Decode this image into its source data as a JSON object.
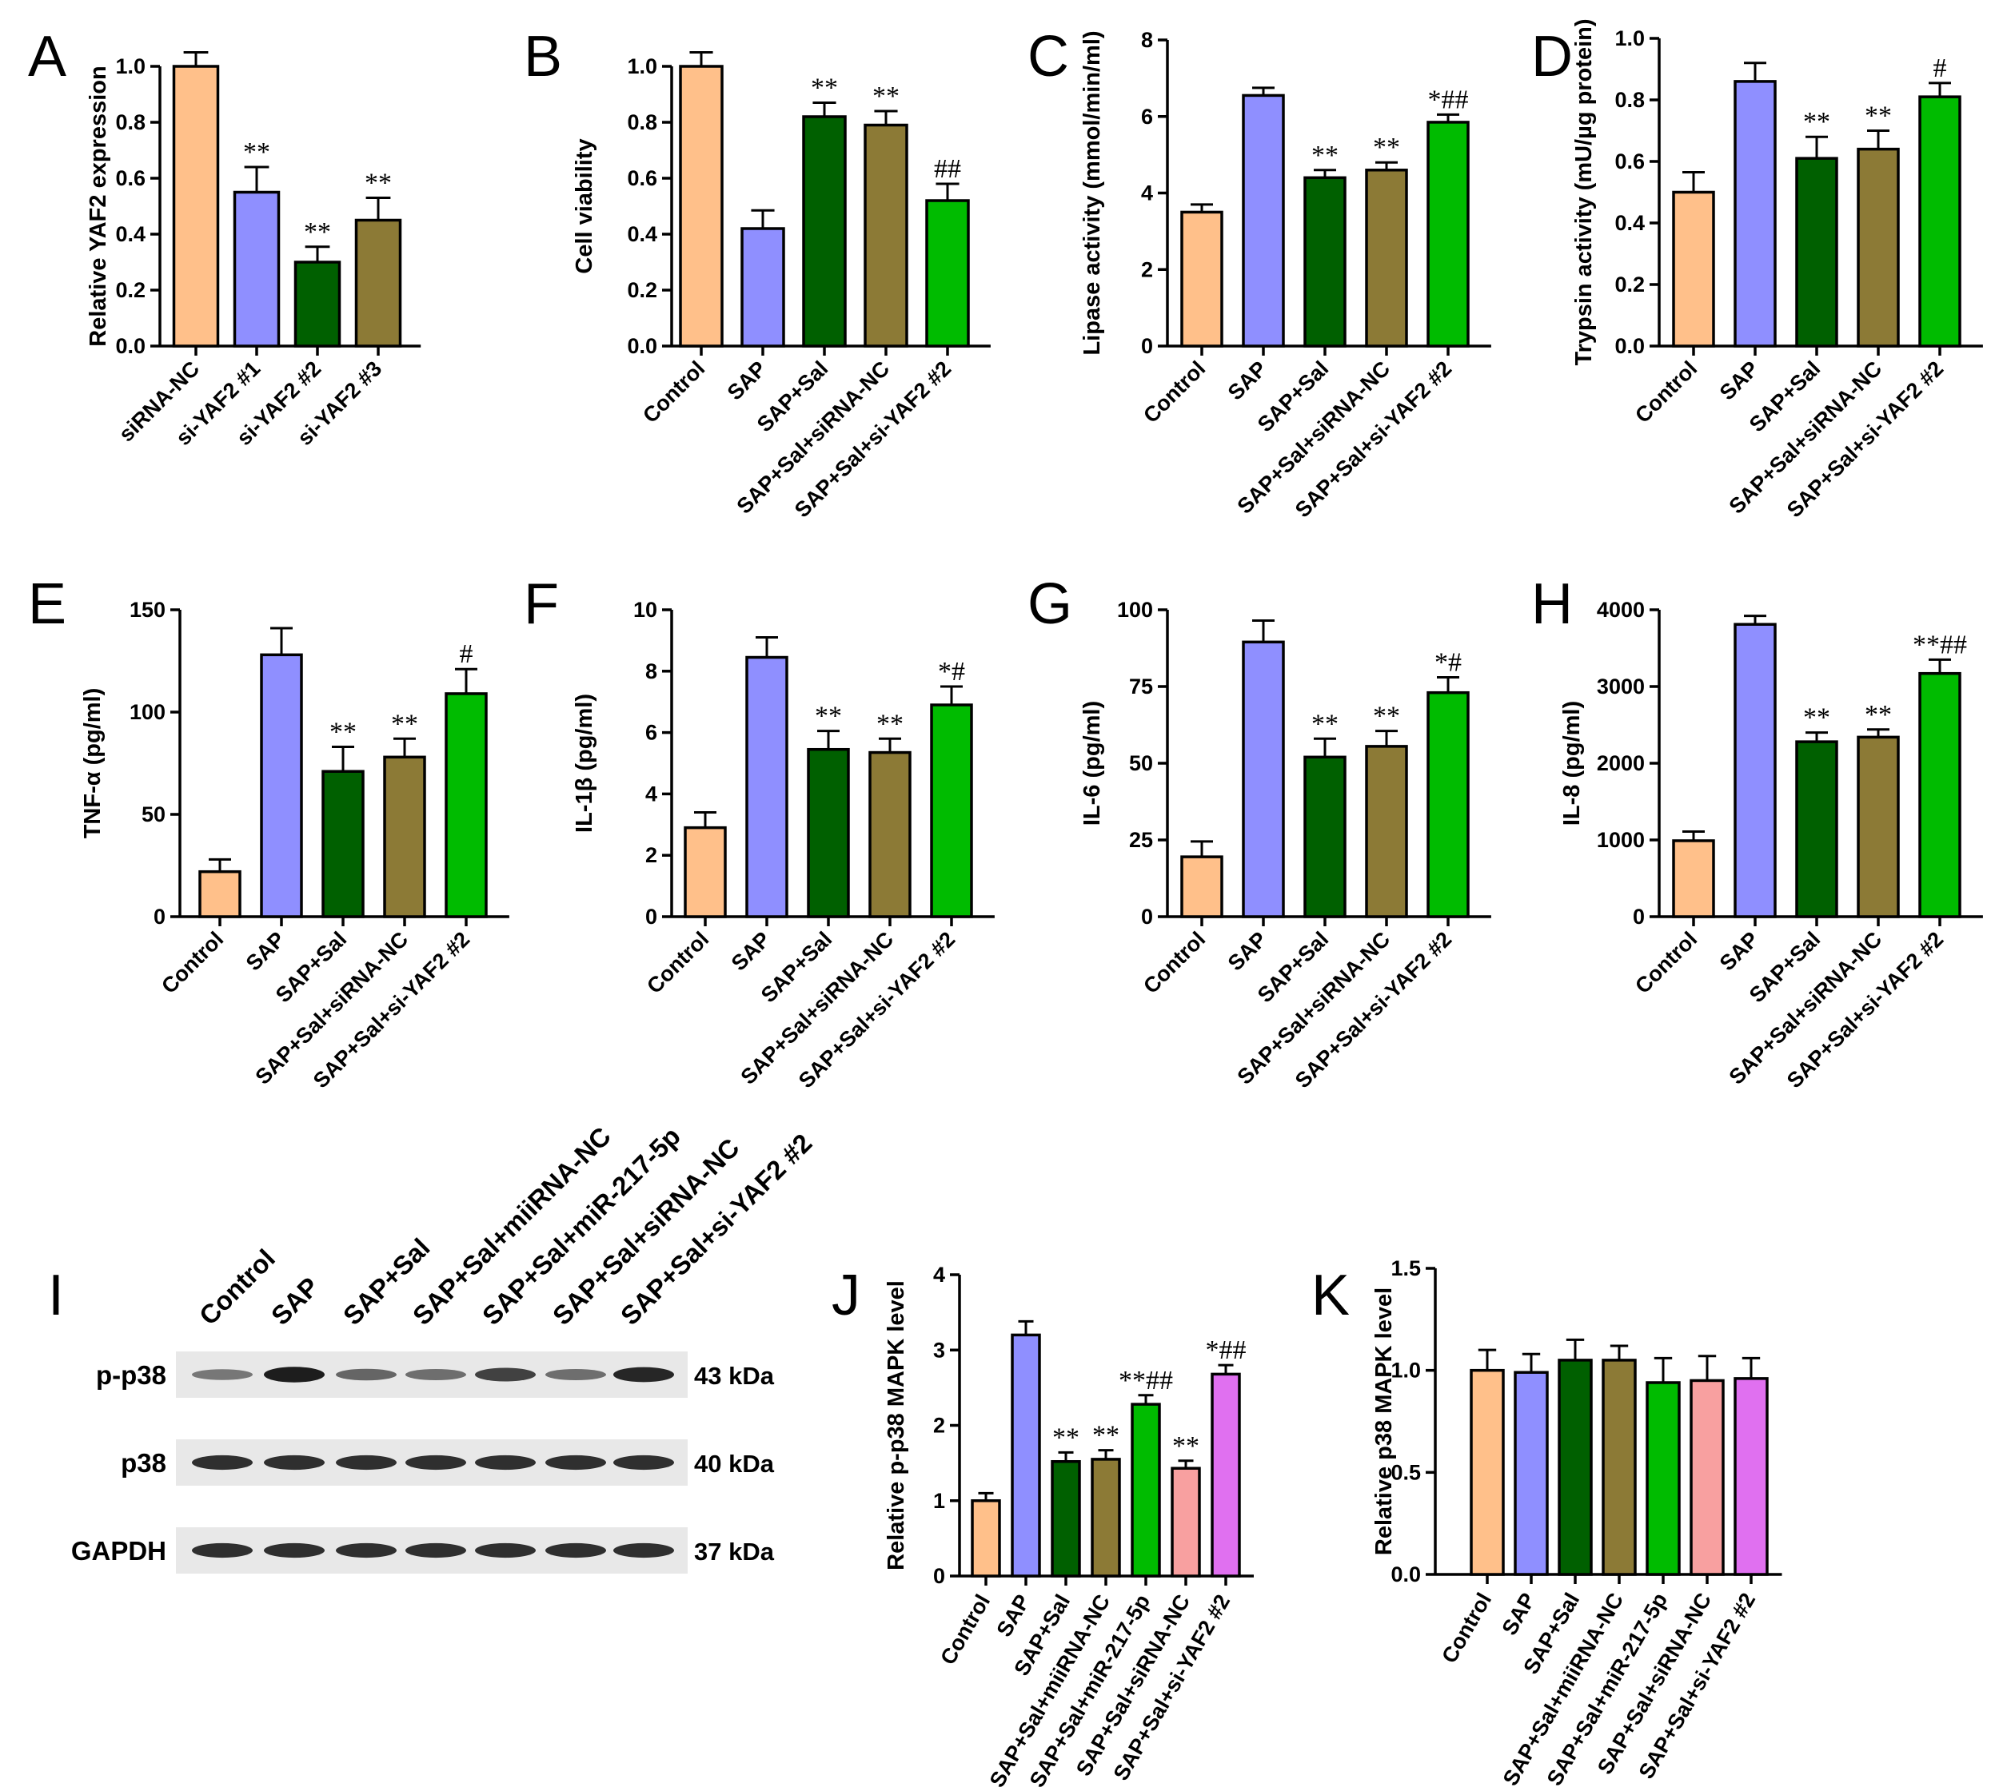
{
  "colors": {
    "orange": "#FFC08A",
    "lavender": "#8F8FFF",
    "darkgreen": "#006000",
    "olive": "#8C7A36",
    "green": "#00BB00",
    "pink": "#F8A0A0",
    "violet": "#E070F0"
  },
  "chart_data": [
    {
      "panel": "A",
      "type": "bar",
      "ylabel": "Relative YAF2 expression",
      "ylim": [
        0,
        1.0
      ],
      "yticks": [
        0.0,
        0.2,
        0.4,
        0.6,
        0.8,
        1.0
      ],
      "categories": [
        "siRNA-NC",
        "si-YAF2 #1",
        "si-YAF2 #2",
        "si-YAF2 #3"
      ],
      "values": [
        1.0,
        0.55,
        0.3,
        0.45
      ],
      "errors": [
        0.05,
        0.09,
        0.055,
        0.08
      ],
      "annotations": [
        "",
        "**",
        "**",
        "**"
      ],
      "colors": [
        "orange",
        "lavender",
        "darkgreen",
        "olive"
      ]
    },
    {
      "panel": "B",
      "type": "bar",
      "ylabel": "Cell viability",
      "ylim": [
        0,
        1.0
      ],
      "yticks": [
        0.0,
        0.2,
        0.4,
        0.6,
        0.8,
        1.0
      ],
      "categories": [
        "Control",
        "SAP",
        "SAP+Sal",
        "SAP+Sal+siRNA-NC",
        "SAP+Sal+si-YAF2 #2"
      ],
      "values": [
        1.0,
        0.42,
        0.82,
        0.79,
        0.52
      ],
      "errors": [
        0.05,
        0.065,
        0.05,
        0.05,
        0.06
      ],
      "annotations": [
        "",
        "",
        "**",
        "**",
        "##"
      ],
      "colors": [
        "orange",
        "lavender",
        "darkgreen",
        "olive",
        "green"
      ]
    },
    {
      "panel": "C",
      "type": "bar",
      "ylabel": "Lipase activity (mmol/min/ml)",
      "ylim": [
        0,
        8
      ],
      "yticks": [
        0,
        2,
        4,
        6,
        8
      ],
      "categories": [
        "Control",
        "SAP",
        "SAP+Sal",
        "SAP+Sal+siRNA-NC",
        "SAP+Sal+si-YAF2 #2"
      ],
      "values": [
        3.5,
        6.55,
        4.4,
        4.6,
        5.85
      ],
      "errors": [
        0.2,
        0.2,
        0.2,
        0.2,
        0.2
      ],
      "annotations": [
        "",
        "",
        "**",
        "**",
        "*##"
      ],
      "colors": [
        "orange",
        "lavender",
        "darkgreen",
        "olive",
        "green"
      ]
    },
    {
      "panel": "D",
      "type": "bar",
      "ylabel": "Trypsin activity (mU/µg protein)",
      "ylim": [
        0,
        1.0
      ],
      "yticks": [
        0.0,
        0.2,
        0.4,
        0.6,
        0.8,
        1.0
      ],
      "categories": [
        "Control",
        "SAP",
        "SAP+Sal",
        "SAP+Sal+siRNA-NC",
        "SAP+Sal+si-YAF2 #2"
      ],
      "values": [
        0.5,
        0.86,
        0.61,
        0.64,
        0.81
      ],
      "errors": [
        0.065,
        0.06,
        0.07,
        0.06,
        0.045
      ],
      "annotations": [
        "",
        "",
        "**",
        "**",
        "#"
      ],
      "colors": [
        "orange",
        "lavender",
        "darkgreen",
        "olive",
        "green"
      ]
    },
    {
      "panel": "E",
      "type": "bar",
      "ylabel": "TNF-α (pg/ml)",
      "ylim": [
        0,
        150
      ],
      "yticks": [
        0,
        50,
        100,
        150
      ],
      "categories": [
        "Control",
        "SAP",
        "SAP+Sal",
        "SAP+Sal+siRNA-NC",
        "SAP+Sal+si-YAF2 #2"
      ],
      "values": [
        22,
        128,
        71,
        78,
        109
      ],
      "errors": [
        6,
        13,
        12,
        9,
        12
      ],
      "annotations": [
        "",
        "",
        "**",
        "**",
        "#"
      ],
      "colors": [
        "orange",
        "lavender",
        "darkgreen",
        "olive",
        "green"
      ]
    },
    {
      "panel": "F",
      "type": "bar",
      "ylabel": "IL-1β (pg/ml)",
      "ylim": [
        0,
        10
      ],
      "yticks": [
        0,
        2,
        4,
        6,
        8,
        10
      ],
      "categories": [
        "Control",
        "SAP",
        "SAP+Sal",
        "SAP+Sal+siRNA-NC",
        "SAP+Sal+si-YAF2 #2"
      ],
      "values": [
        2.9,
        8.45,
        5.45,
        5.35,
        6.9
      ],
      "errors": [
        0.5,
        0.65,
        0.6,
        0.45,
        0.6
      ],
      "annotations": [
        "",
        "",
        "**",
        "**",
        "*#"
      ],
      "colors": [
        "orange",
        "lavender",
        "darkgreen",
        "olive",
        "green"
      ]
    },
    {
      "panel": "G",
      "type": "bar",
      "ylabel": "IL-6 (pg/ml)",
      "ylim": [
        0,
        100
      ],
      "yticks": [
        0,
        25,
        50,
        75,
        100
      ],
      "categories": [
        "Control",
        "SAP",
        "SAP+Sal",
        "SAP+Sal+siRNA-NC",
        "SAP+Sal+si-YAF2 #2"
      ],
      "values": [
        19.5,
        89.5,
        52,
        55.5,
        73
      ],
      "errors": [
        5,
        7,
        6,
        5,
        5
      ],
      "annotations": [
        "",
        "",
        "**",
        "**",
        "*#"
      ],
      "colors": [
        "orange",
        "lavender",
        "darkgreen",
        "olive",
        "green"
      ]
    },
    {
      "panel": "H",
      "type": "bar",
      "ylabel": "IL-8 (pg/ml)",
      "ylim": [
        0,
        4000
      ],
      "yticks": [
        0,
        1000,
        2000,
        3000,
        4000
      ],
      "categories": [
        "Control",
        "SAP",
        "SAP+Sal",
        "SAP+Sal+siRNA-NC",
        "SAP+Sal+si-YAF2 #2"
      ],
      "values": [
        990,
        3810,
        2280,
        2340,
        3170
      ],
      "errors": [
        120,
        110,
        120,
        100,
        180
      ],
      "annotations": [
        "",
        "",
        "**",
        "**",
        "**##"
      ],
      "colors": [
        "orange",
        "lavender",
        "darkgreen",
        "olive",
        "green"
      ]
    },
    {
      "panel": "J",
      "type": "bar",
      "ylabel": "Relative p-p38 MAPK level",
      "ylim": [
        0,
        4
      ],
      "yticks": [
        0,
        1,
        2,
        3,
        4
      ],
      "categories": [
        "Control",
        "SAP",
        "SAP+Sal",
        "SAP+Sal+miiRNA-NC",
        "SAP+Sal+miR-217-5p",
        "SAP+Sal+siRNA-NC",
        "SAP+Sal+si-YAF2 #2"
      ],
      "values": [
        1.0,
        3.2,
        1.52,
        1.55,
        2.28,
        1.43,
        2.68
      ],
      "errors": [
        0.1,
        0.18,
        0.12,
        0.12,
        0.12,
        0.1,
        0.12
      ],
      "annotations": [
        "",
        "",
        "**",
        "**",
        "**##",
        "**",
        "*##"
      ],
      "colors": [
        "orange",
        "lavender",
        "darkgreen",
        "olive",
        "green",
        "pink",
        "violet"
      ]
    },
    {
      "panel": "K",
      "type": "bar",
      "ylabel": "Relative p38 MAPK level",
      "ylim": [
        0,
        1.5
      ],
      "yticks": [
        0.0,
        0.5,
        1.0,
        1.5
      ],
      "categories": [
        "Control",
        "SAP",
        "SAP+Sal",
        "SAP+Sal+miiRNA-NC",
        "SAP+Sal+miR-217-5p",
        "SAP+Sal+siRNA-NC",
        "SAP+Sal+si-YAF2 #2"
      ],
      "values": [
        1.0,
        0.99,
        1.05,
        1.05,
        0.94,
        0.95,
        0.96
      ],
      "errors": [
        0.1,
        0.09,
        0.1,
        0.07,
        0.12,
        0.12,
        0.1
      ],
      "annotations": [
        "",
        "",
        "",
        "",
        "",
        "",
        ""
      ],
      "colors": [
        "orange",
        "lavender",
        "darkgreen",
        "olive",
        "green",
        "pink",
        "violet"
      ]
    }
  ],
  "blot": {
    "panel": "I",
    "lanes": [
      "Control",
      "SAP",
      "SAP+Sal",
      "SAP+Sal+miiRNA-NC",
      "SAP+Sal+miR-217-5p",
      "SAP+Sal+siRNA-NC",
      "SAP+Sal+si-YAF2 #2"
    ],
    "rows": [
      {
        "label": "p-p38",
        "kda": "43 kDa",
        "intensities": [
          0.45,
          0.95,
          0.55,
          0.5,
          0.75,
          0.5,
          0.9
        ]
      },
      {
        "label": "p38",
        "kda": "40 kDa",
        "intensities": [
          0.85,
          0.85,
          0.85,
          0.85,
          0.85,
          0.85,
          0.85
        ]
      },
      {
        "label": "GAPDH",
        "kda": "37 kDa",
        "intensities": [
          0.85,
          0.85,
          0.85,
          0.85,
          0.85,
          0.85,
          0.85
        ]
      }
    ]
  }
}
